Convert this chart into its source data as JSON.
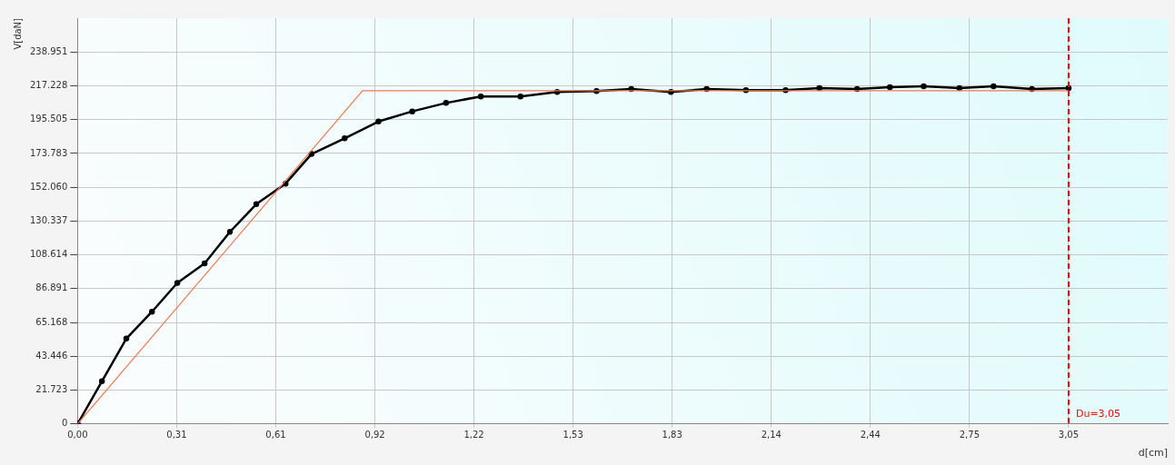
{
  "chart_data": {
    "type": "line",
    "xlabel": "d[cm]",
    "ylabel": "V[daN]",
    "xlim": [
      0,
      3.355
    ],
    "ylim": [
      0,
      260674
    ],
    "xticks": [
      {
        "value": 0,
        "label": "0,00"
      },
      {
        "value": 0.305,
        "label": "0,31"
      },
      {
        "value": 0.61,
        "label": "0,61"
      },
      {
        "value": 0.915,
        "label": "0,92"
      },
      {
        "value": 1.22,
        "label": "1,22"
      },
      {
        "value": 1.525,
        "label": "1,53"
      },
      {
        "value": 1.83,
        "label": "1,83"
      },
      {
        "value": 2.135,
        "label": "2,14"
      },
      {
        "value": 2.44,
        "label": "2,44"
      },
      {
        "value": 2.745,
        "label": "2,75"
      },
      {
        "value": 3.05,
        "label": "3,05"
      }
    ],
    "yticks": [
      0,
      {
        "value": 21723,
        "label": "21.723"
      },
      {
        "value": 43446,
        "label": "43.446"
      },
      {
        "value": 65168,
        "label": "65.168"
      },
      {
        "value": 86891,
        "label": "86.891"
      },
      {
        "value": 108614,
        "label": "108.614"
      },
      {
        "value": 130337,
        "label": "130.337"
      },
      {
        "value": 152060,
        "label": "152.060"
      },
      {
        "value": 173783,
        "label": "173.783"
      },
      {
        "value": 195505,
        "label": "195.505"
      },
      {
        "value": 217228,
        "label": "217.228"
      },
      {
        "value": 238951,
        "label": "238.951"
      }
    ],
    "grid": true,
    "legend": false,
    "line_style": "solid",
    "series": [
      {
        "color": "#f07850",
        "marker": "none",
        "x": [
          0,
          0.877,
          3.05
        ],
        "values": [
          0,
          214100,
          214100
        ]
      },
      {
        "color": "#000000",
        "marker": "circle",
        "x": [
          0,
          0.075,
          0.15,
          0.229,
          0.307,
          0.391,
          0.469,
          0.55,
          0.64,
          0.72,
          0.822,
          0.926,
          1.03,
          1.134,
          1.241,
          1.363,
          1.476,
          1.597,
          1.704,
          1.826,
          1.936,
          2.057,
          2.179,
          2.283,
          2.399,
          2.5,
          2.604,
          2.714,
          2.819,
          2.937,
          3.05
        ],
        "values": [
          0,
          27400,
          54800,
          72100,
          90600,
          103100,
          123400,
          141200,
          154400,
          173400,
          183500,
          194300,
          200800,
          206200,
          210400,
          210400,
          213300,
          213900,
          215100,
          213300,
          215100,
          214500,
          214500,
          215700,
          215100,
          216300,
          216900,
          215700,
          216900,
          215100,
          215700
        ]
      },
      {
        "type": "scatter",
        "color": "#cc00cc",
        "marker": "diamond",
        "x": [
          0
        ],
        "values": [
          0
        ]
      }
    ],
    "ref_lines": [
      {
        "axis": "x",
        "value": 3.05,
        "label": "Du=3,05",
        "color": "#ff0000",
        "line_style": "dashed"
      }
    ]
  }
}
